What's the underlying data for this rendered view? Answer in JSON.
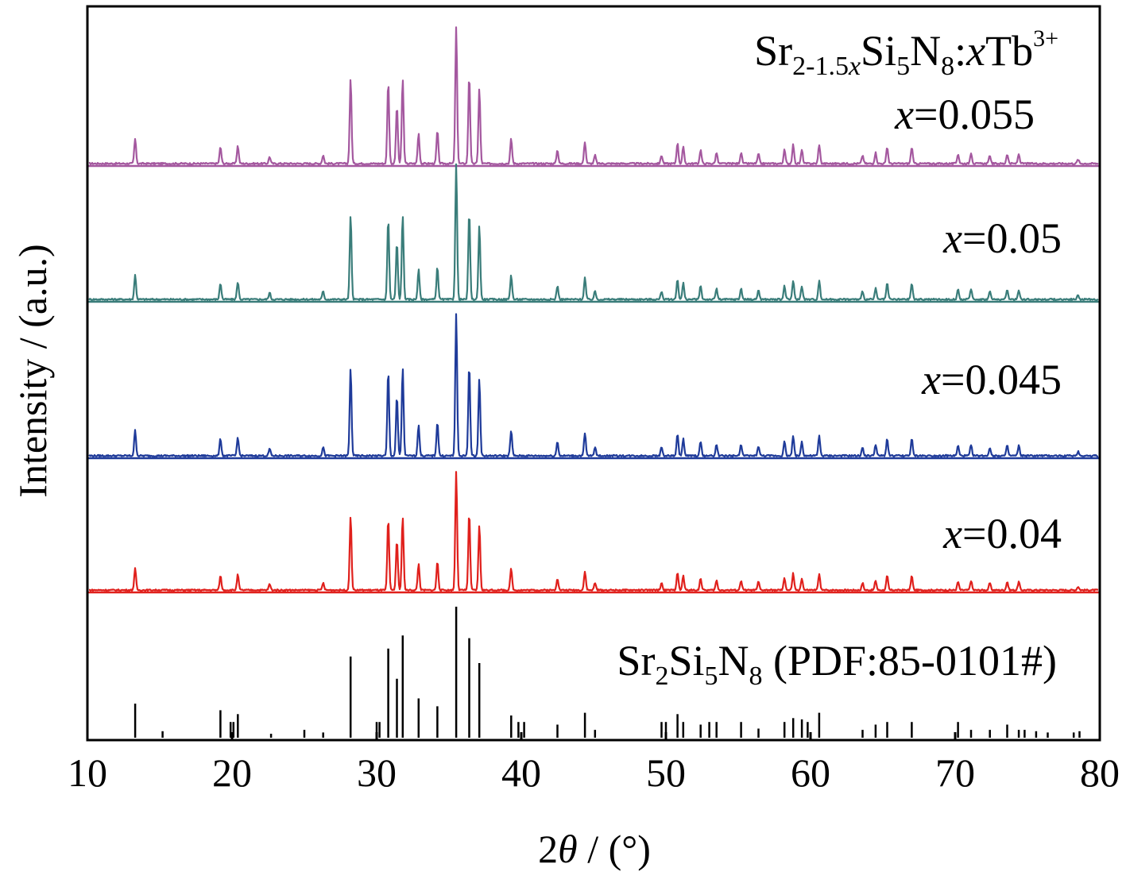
{
  "chart_data": {
    "type": "line",
    "title": "",
    "xlabel": {
      "pre": "2",
      "theta": "θ",
      "post": " / (°)"
    },
    "ylabel": "Intensity / (a.u.)",
    "xlim": [
      10,
      80
    ],
    "xticks": [
      "10",
      "20",
      "30",
      "40",
      "50",
      "60",
      "70",
      "80"
    ],
    "yticks": "none (offset stacked patterns)",
    "grid": false,
    "legend": "none; series labeled inline at right",
    "formula_label": {
      "base1": "Sr",
      "sub1": "2-1.5",
      "sub1_var": "x",
      "base2": "Si",
      "sub2": "5",
      "base3": "N",
      "sub3": "8",
      "colon": ":",
      "var": "x",
      "dopant": "Tb",
      "charge": "3+"
    },
    "reference_label": {
      "base1": "Sr",
      "sub1": "2",
      "base2": "Si",
      "sub2": "5",
      "base3": "N",
      "sub3": "8",
      "rest": " (PDF:85-0101#)"
    },
    "series": [
      {
        "name": "x=0.055",
        "label_var": "x",
        "label_rest": "=0.055",
        "color": "#a4589f",
        "order": 0
      },
      {
        "name": "x=0.05",
        "label_var": "x",
        "label_rest": "=0.05",
        "color": "#3a7d7a",
        "order": 1
      },
      {
        "name": "x=0.045",
        "label_var": "x",
        "label_rest": "=0.045",
        "color": "#1f3b9a",
        "order": 2
      },
      {
        "name": "x=0.04",
        "label_var": "x",
        "label_rest": "=0.04",
        "color": "#e0201c",
        "order": 3
      }
    ],
    "peaks": [
      [
        13.3,
        0.18
      ],
      [
        19.2,
        0.12
      ],
      [
        20.4,
        0.13
      ],
      [
        22.6,
        0.05
      ],
      [
        26.3,
        0.06
      ],
      [
        28.2,
        0.62
      ],
      [
        30.8,
        0.6
      ],
      [
        31.4,
        0.42
      ],
      [
        31.8,
        0.62
      ],
      [
        32.9,
        0.22
      ],
      [
        34.2,
        0.24
      ],
      [
        35.5,
        1.0
      ],
      [
        36.4,
        0.65
      ],
      [
        37.1,
        0.55
      ],
      [
        39.3,
        0.18
      ],
      [
        42.5,
        0.1
      ],
      [
        44.4,
        0.16
      ],
      [
        45.1,
        0.06
      ],
      [
        49.7,
        0.06
      ],
      [
        50.8,
        0.15
      ],
      [
        51.2,
        0.12
      ],
      [
        52.4,
        0.1
      ],
      [
        53.5,
        0.08
      ],
      [
        55.2,
        0.08
      ],
      [
        56.4,
        0.07
      ],
      [
        58.2,
        0.1
      ],
      [
        58.8,
        0.14
      ],
      [
        59.4,
        0.1
      ],
      [
        60.6,
        0.14
      ],
      [
        63.6,
        0.06
      ],
      [
        64.5,
        0.08
      ],
      [
        65.3,
        0.12
      ],
      [
        67.0,
        0.12
      ],
      [
        70.2,
        0.07
      ],
      [
        71.1,
        0.08
      ],
      [
        72.4,
        0.06
      ],
      [
        73.6,
        0.07
      ],
      [
        74.4,
        0.07
      ],
      [
        78.5,
        0.03
      ]
    ],
    "reference_sticks": [
      [
        13.3,
        0.26
      ],
      [
        15.2,
        0.05
      ],
      [
        19.2,
        0.21
      ],
      [
        19.9,
        0.12
      ],
      [
        20.1,
        0.12
      ],
      [
        20.4,
        0.18
      ],
      [
        22.7,
        0.03
      ],
      [
        25.0,
        0.06
      ],
      [
        26.3,
        0.04
      ],
      [
        28.2,
        0.62
      ],
      [
        30.0,
        0.12
      ],
      [
        30.2,
        0.12
      ],
      [
        30.8,
        0.68
      ],
      [
        31.4,
        0.45
      ],
      [
        31.8,
        0.78
      ],
      [
        32.9,
        0.3
      ],
      [
        34.2,
        0.24
      ],
      [
        35.5,
        1.0
      ],
      [
        36.4,
        0.76
      ],
      [
        37.1,
        0.57
      ],
      [
        39.3,
        0.17
      ],
      [
        39.8,
        0.12
      ],
      [
        40.2,
        0.12
      ],
      [
        42.5,
        0.1
      ],
      [
        44.4,
        0.19
      ],
      [
        45.1,
        0.06
      ],
      [
        49.7,
        0.12
      ],
      [
        50.0,
        0.12
      ],
      [
        50.8,
        0.18
      ],
      [
        51.2,
        0.12
      ],
      [
        52.4,
        0.1
      ],
      [
        53.0,
        0.12
      ],
      [
        53.5,
        0.12
      ],
      [
        55.2,
        0.12
      ],
      [
        56.4,
        0.07
      ],
      [
        58.2,
        0.12
      ],
      [
        58.8,
        0.15
      ],
      [
        59.4,
        0.14
      ],
      [
        59.8,
        0.12
      ],
      [
        60.6,
        0.19
      ],
      [
        63.6,
        0.06
      ],
      [
        64.5,
        0.1
      ],
      [
        65.3,
        0.12
      ],
      [
        67.0,
        0.12
      ],
      [
        70.2,
        0.12
      ],
      [
        71.1,
        0.06
      ],
      [
        72.4,
        0.06
      ],
      [
        73.6,
        0.1
      ],
      [
        74.4,
        0.06
      ],
      [
        74.8,
        0.06
      ],
      [
        75.6,
        0.05
      ],
      [
        76.4,
        0.04
      ],
      [
        78.2,
        0.04
      ],
      [
        78.6,
        0.05
      ]
    ]
  }
}
